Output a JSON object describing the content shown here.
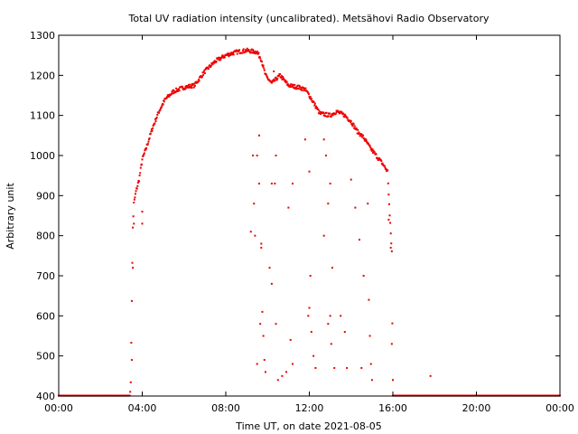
{
  "chart_data": {
    "type": "scatter",
    "title": "Total UV radiation intensity (uncalibrated). Metsähovi Radio Observatory",
    "xlabel": "Time UT, on date 2021-08-05",
    "ylabel": "Arbitrary unit",
    "xlim": [
      0,
      24
    ],
    "ylim": [
      400,
      1300
    ],
    "x_tick_labels": [
      "00:00",
      "04:00",
      "08:00",
      "12:00",
      "16:00",
      "20:00",
      "00:00"
    ],
    "y_tick_labels": [
      "400",
      "500",
      "600",
      "700",
      "800",
      "900",
      "1000",
      "1100",
      "1200",
      "1300"
    ],
    "grid": false,
    "legend": "none",
    "point_color": "#ee0000",
    "series": [
      {
        "envelope": [
          [
            0,
            401
          ],
          [
            3.4,
            401
          ],
          [
            3.45,
            430
          ],
          [
            3.5,
            640
          ],
          [
            3.55,
            820
          ],
          [
            3.6,
            880
          ],
          [
            3.7,
            910
          ],
          [
            3.85,
            940
          ],
          [
            4.0,
            990
          ],
          [
            4.2,
            1020
          ],
          [
            4.5,
            1070
          ],
          [
            4.8,
            1110
          ],
          [
            5.1,
            1140
          ],
          [
            5.5,
            1160
          ],
          [
            6.0,
            1170
          ],
          [
            6.5,
            1175
          ],
          [
            7.0,
            1210
          ],
          [
            7.5,
            1235
          ],
          [
            8.0,
            1250
          ],
          [
            8.5,
            1258
          ],
          [
            9.0,
            1262
          ],
          [
            9.5,
            1258
          ],
          [
            9.7,
            1240
          ],
          [
            9.9,
            1200
          ],
          [
            10.2,
            1180
          ],
          [
            10.6,
            1200
          ],
          [
            11.0,
            1175
          ],
          [
            11.5,
            1170
          ],
          [
            11.8,
            1165
          ],
          [
            12.0,
            1150
          ],
          [
            12.5,
            1105
          ],
          [
            13.0,
            1100
          ],
          [
            13.3,
            1110
          ],
          [
            13.7,
            1100
          ],
          [
            14.0,
            1085
          ],
          [
            14.3,
            1060
          ],
          [
            14.6,
            1045
          ],
          [
            14.9,
            1020
          ],
          [
            15.2,
            1000
          ],
          [
            15.5,
            980
          ],
          [
            15.75,
            960
          ],
          [
            15.85,
            850
          ],
          [
            15.95,
            760
          ],
          [
            16.0,
            401
          ],
          [
            24,
            401
          ]
        ],
        "scatter_drops": [
          [
            3.5,
            490
          ],
          [
            3.55,
            720
          ],
          [
            3.6,
            830
          ],
          [
            4.0,
            860
          ],
          [
            4.0,
            830
          ],
          [
            9.2,
            810
          ],
          [
            9.3,
            1000
          ],
          [
            9.35,
            880
          ],
          [
            9.4,
            800
          ],
          [
            9.5,
            1000
          ],
          [
            9.6,
            1050
          ],
          [
            9.6,
            930
          ],
          [
            9.7,
            780
          ],
          [
            9.7,
            770
          ],
          [
            9.75,
            610
          ],
          [
            9.8,
            550
          ],
          [
            9.85,
            490
          ],
          [
            9.9,
            460
          ],
          [
            9.65,
            580
          ],
          [
            9.5,
            480
          ],
          [
            10.3,
            1210
          ],
          [
            10.4,
            1000
          ],
          [
            10.35,
            930
          ],
          [
            10.2,
            930
          ],
          [
            10.1,
            720
          ],
          [
            10.2,
            680
          ],
          [
            10.4,
            580
          ],
          [
            10.5,
            440
          ],
          [
            10.7,
            450
          ],
          [
            10.9,
            460
          ],
          [
            11.2,
            930
          ],
          [
            11.0,
            870
          ],
          [
            11.1,
            540
          ],
          [
            11.2,
            480
          ],
          [
            11.8,
            1040
          ],
          [
            12.0,
            960
          ],
          [
            12.05,
            700
          ],
          [
            12.0,
            620
          ],
          [
            11.95,
            600
          ],
          [
            12.1,
            560
          ],
          [
            12.2,
            500
          ],
          [
            12.3,
            470
          ],
          [
            12.7,
            1040
          ],
          [
            12.8,
            1000
          ],
          [
            12.9,
            880
          ],
          [
            12.7,
            800
          ],
          [
            13.0,
            930
          ],
          [
            13.1,
            720
          ],
          [
            13.0,
            600
          ],
          [
            12.9,
            580
          ],
          [
            13.05,
            530
          ],
          [
            13.2,
            470
          ],
          [
            13.5,
            600
          ],
          [
            13.7,
            560
          ],
          [
            13.8,
            470
          ],
          [
            14.0,
            940
          ],
          [
            14.2,
            870
          ],
          [
            14.4,
            790
          ],
          [
            14.6,
            700
          ],
          [
            14.5,
            470
          ],
          [
            14.8,
            880
          ],
          [
            14.85,
            640
          ],
          [
            14.9,
            550
          ],
          [
            14.95,
            480
          ],
          [
            15.0,
            440
          ],
          [
            15.8,
            840
          ],
          [
            15.9,
            770
          ],
          [
            15.95,
            530
          ],
          [
            16.0,
            440
          ],
          [
            17.8,
            450
          ]
        ]
      }
    ]
  }
}
